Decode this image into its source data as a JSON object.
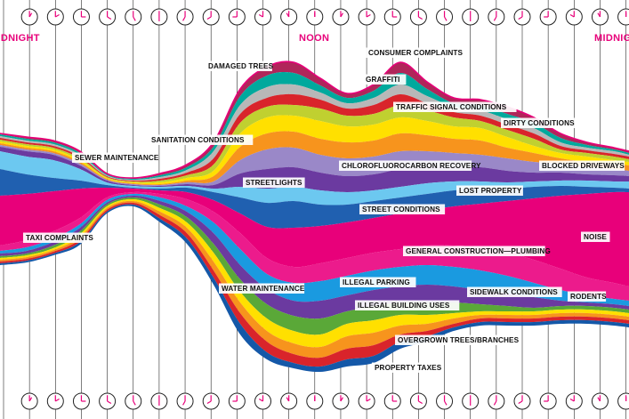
{
  "chart_data": {
    "type": "area",
    "title": "",
    "period_labels": {
      "left": "MIDNIGHT",
      "center": "NOON",
      "right": "MIDNIGHT"
    },
    "colors": {
      "magenta": "#e8007a",
      "noise_pink": "#ec1b8c",
      "blue": "#1a9ae0",
      "light_blue": "#6cc8f0",
      "purple": "#6b3aa0",
      "lavender": "#9a88c8",
      "green": "#5aa838",
      "lime": "#c0d030",
      "yellow": "#ffe000",
      "orange": "#f7941d",
      "red": "#d9242b",
      "teal": "#00a99d",
      "crimson": "#b0265a",
      "navy": "#2060b0",
      "gray": "#b8b8b8",
      "dark_blue": "#1458a8"
    },
    "series_labels": [
      {
        "id": "damaged-trees",
        "text": "DAMAGED TREES"
      },
      {
        "id": "consumer-complaints",
        "text": "CONSUMER COMPLAINTS"
      },
      {
        "id": "graffiti",
        "text": "GRAFFITI"
      },
      {
        "id": "traffic-signal",
        "text": "TRAFFIC SIGNAL CONDITIONS"
      },
      {
        "id": "dirty-conditions",
        "text": "DIRTY CONDITIONS"
      },
      {
        "id": "sanitation",
        "text": "SANITATION CONDITIONS"
      },
      {
        "id": "sewer",
        "text": "SEWER MAINTENANCE"
      },
      {
        "id": "cfc-recovery",
        "text": "CHLOROFLUOROCARBON RECOVERY"
      },
      {
        "id": "blocked-driveways",
        "text": "BLOCKED DRIVEWAYS"
      },
      {
        "id": "streetlights",
        "text": "STREETLIGHTS"
      },
      {
        "id": "lost-property",
        "text": "LOST PROPERTY"
      },
      {
        "id": "street-conditions",
        "text": "STREET CONDITIONS"
      },
      {
        "id": "taxi-complaints",
        "text": "TAXI COMPLAINTS"
      },
      {
        "id": "noise",
        "text": "NOISE"
      },
      {
        "id": "general-construction",
        "text": "GENERAL CONSTRUCTION—PLUMBING"
      },
      {
        "id": "water-maintenance",
        "text": "WATER MAINTENANCE"
      },
      {
        "id": "illegal-parking",
        "text": "ILLEGAL PARKING"
      },
      {
        "id": "sidewalk-conditions",
        "text": "SIDEWALK CONDITIONS"
      },
      {
        "id": "rodents",
        "text": "RODENTS"
      },
      {
        "id": "illegal-building",
        "text": "ILLEGAL BUILDING USES"
      },
      {
        "id": "overgrown-trees",
        "text": "OVERGROWN TREES/BRANCHES"
      },
      {
        "id": "property-taxes",
        "text": "PROPERTY TAXES"
      }
    ]
  }
}
